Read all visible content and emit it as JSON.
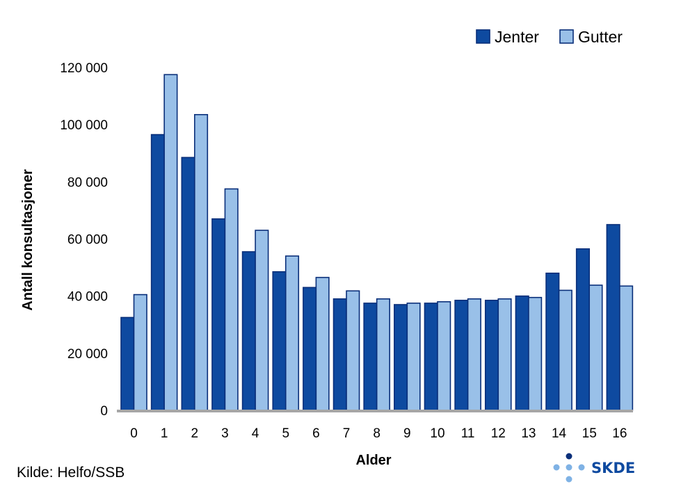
{
  "chart_data": {
    "type": "bar",
    "title": "",
    "xlabel": "Alder",
    "ylabel": "Antall konsultasjoner",
    "categories": [
      "0",
      "1",
      "2",
      "3",
      "4",
      "5",
      "6",
      "7",
      "8",
      "9",
      "10",
      "11",
      "12",
      "13",
      "14",
      "15",
      "16"
    ],
    "series": [
      {
        "name": "Jenter",
        "color": "#0e4aa0",
        "values": [
          32500,
          96500,
          88500,
          67000,
          55500,
          48500,
          43000,
          39000,
          37500,
          37000,
          37500,
          38500,
          38500,
          40000,
          48000,
          56500,
          65000
        ]
      },
      {
        "name": "Gutter",
        "color": "#99c0e8",
        "values": [
          40500,
          117500,
          103500,
          77500,
          63000,
          54000,
          46500,
          41800,
          39000,
          37500,
          38000,
          39000,
          39000,
          39500,
          42000,
          43800,
          43500
        ]
      }
    ],
    "ylim": [
      0,
      120000
    ],
    "yticks": [
      0,
      20000,
      40000,
      60000,
      80000,
      100000,
      120000
    ],
    "ytick_labels": [
      "0",
      "20 000",
      "40 000",
      "60 000",
      "80 000",
      "100 000",
      "120 000"
    ],
    "grid": false,
    "legend_position": "top-right"
  },
  "colors": {
    "bar_stroke": "#0a2f7a",
    "axis": "#a6a6a6"
  },
  "source": "Kilde: Helfo/SSB",
  "logo_text": "SKDE"
}
